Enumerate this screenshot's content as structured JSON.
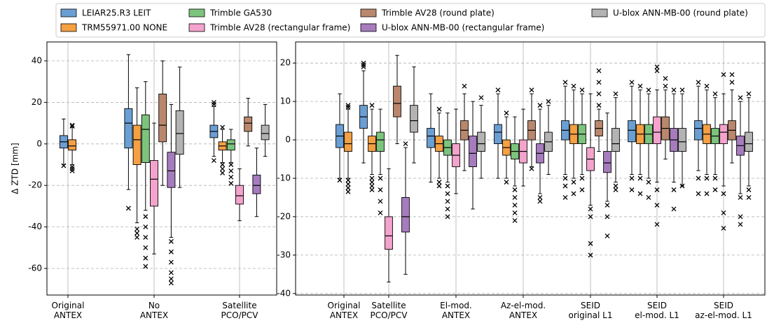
{
  "chart_data": [
    {
      "type": "box",
      "ylabel": "Δ ZTD [mm]",
      "grid": true,
      "categories": [
        "Original\nANTEX",
        "No\nANTEX",
        "Satellite\nPCO/PCV"
      ],
      "ylim": [
        -72.8,
        49.1
      ],
      "yticks": [
        -60,
        -40,
        -20,
        0,
        20,
        40
      ],
      "series": [
        {
          "name": "LEIAR25.R3 LEIT",
          "color": "#6a9fd4",
          "values": [
            {
              "whislo": -10,
              "q1": -2,
              "med": 1,
              "q3": 4,
              "whishi": 12,
              "fliers": [
                -10.5
              ]
            },
            {
              "whislo": -22,
              "q1": -2,
              "med": 10,
              "q3": 17,
              "whishi": 43,
              "fliers": [
                -31
              ]
            },
            {
              "whislo": -6,
              "q1": 3,
              "med": 6,
              "q3": 9,
              "whishi": 18,
              "fliers": [
                19,
                20,
                -8
              ]
            }
          ]
        },
        {
          "name": "TRM55971.00 NONE",
          "color": "#f5a043",
          "values": [
            {
              "whislo": -10,
              "q1": -3,
              "med": -1,
              "q3": 2,
              "whishi": 8,
              "fliers": [
                9,
                8.5,
                -11,
                -12,
                -13
              ]
            },
            {
              "whislo": -38,
              "q1": -10,
              "med": 2,
              "q3": 9,
              "whishi": 27,
              "fliers": [
                -41,
                -43,
                -45
              ]
            },
            {
              "whislo": -9,
              "q1": -3,
              "med": -1,
              "q3": 1,
              "whishi": 7,
              "fliers": [
                8,
                -10,
                -12,
                -14
              ]
            }
          ]
        },
        {
          "name": "Trimble GA530",
          "color": "#7cc47c",
          "values": [
            null,
            {
              "whislo": -32,
              "q1": -9,
              "med": 7,
              "q3": 14,
              "whishi": 30,
              "fliers": [
                -35,
                -40,
                -45,
                -50,
                -55,
                -59
              ]
            },
            {
              "whislo": -9,
              "q1": -3,
              "med": 0,
              "q3": 2,
              "whishi": 7,
              "fliers": [
                -10,
                -13,
                -16,
                -19
              ]
            }
          ]
        },
        {
          "name": "Trimble AV28 (rectangular frame)",
          "color": "#f4a3cc",
          "values": [
            null,
            {
              "whislo": -53,
              "q1": -30,
              "med": -17,
              "q3": -8,
              "whishi": 10,
              "fliers": []
            },
            {
              "whislo": -37,
              "q1": -29,
              "med": -25,
              "q3": -20,
              "whishi": -12,
              "fliers": []
            }
          ]
        },
        {
          "name": "Trimble AV28 (round plate)",
          "color": "#b9886c",
          "values": [
            null,
            {
              "whislo": -20,
              "q1": 1,
              "med": 9,
              "q3": 24,
              "whishi": 40,
              "fliers": []
            },
            {
              "whislo": -1,
              "q1": 6,
              "med": 10,
              "q3": 13,
              "whishi": 22,
              "fliers": []
            }
          ]
        },
        {
          "name": "U-blox ANN-MB-00 (rectangular frame)",
          "color": "#a77cbf",
          "values": [
            null,
            {
              "whislo": -45,
              "q1": -21,
              "med": -13,
              "q3": -4,
              "whishi": 19,
              "fliers": [
                -47,
                -52,
                -57,
                -62,
                -65,
                -67
              ]
            },
            {
              "whislo": -35,
              "q1": -24,
              "med": -20,
              "q3": -15,
              "whishi": -2,
              "fliers": []
            }
          ]
        },
        {
          "name": "U-blox ANN-MB-00 (round plate)",
          "color": "#b3b3b3",
          "values": [
            null,
            {
              "whislo": -21,
              "q1": -5,
              "med": 5,
              "q3": 16,
              "whishi": 37,
              "fliers": []
            },
            {
              "whislo": -6,
              "q1": 2,
              "med": 5,
              "q3": 9,
              "whishi": 19,
              "fliers": []
            }
          ]
        }
      ]
    },
    {
      "type": "box",
      "grid": true,
      "categories": [
        "Original\nANTEX",
        "Satellite\nPCO/PCV",
        "El-mod.\nANTEX",
        "Az-el-mod.\nANTEX",
        "SEID\noriginal L1",
        "SEID\nel-mod. L1",
        "SEID\naz-el-mod. L1"
      ],
      "ylim": [
        -40.4,
        25.5
      ],
      "yticks": [
        -40,
        -30,
        -20,
        -10,
        0,
        10,
        20
      ],
      "series": [
        {
          "values": [
            {
              "whislo": -10,
              "q1": -2,
              "med": 1,
              "q3": 4,
              "whishi": 12,
              "fliers": [
                -10.5
              ]
            },
            {
              "whislo": -6,
              "q1": 3,
              "med": 6,
              "q3": 9,
              "whishi": 18,
              "fliers": [
                19,
                19.5,
                20
              ]
            },
            {
              "whislo": -11,
              "q1": -2,
              "med": 1,
              "q3": 3,
              "whishi": 12,
              "fliers": []
            },
            {
              "whislo": -10,
              "q1": -1,
              "med": 2,
              "q3": 4,
              "whishi": 12,
              "fliers": [
                13
              ]
            },
            {
              "whislo": -9,
              "q1": 0,
              "med": 2.5,
              "q3": 5,
              "whishi": 14,
              "fliers": [
                15,
                -10,
                -12,
                -15
              ]
            },
            {
              "whislo": -9,
              "q1": -0.5,
              "med": 2.5,
              "q3": 5,
              "whishi": 14,
              "fliers": [
                15,
                -10,
                -13
              ]
            },
            {
              "whislo": -8,
              "q1": 0,
              "med": 3,
              "q3": 5,
              "whishi": 14,
              "fliers": [
                15,
                -10,
                -14
              ]
            }
          ]
        },
        {
          "values": [
            {
              "whislo": -10,
              "q1": -3,
              "med": -1,
              "q3": 2,
              "whishi": 8,
              "fliers": [
                9,
                8.5,
                -10.5,
                -11.5,
                -12.5,
                -13.5
              ]
            },
            {
              "whislo": -9,
              "q1": -3,
              "med": -1,
              "q3": 1,
              "whishi": 8,
              "fliers": [
                9,
                -10,
                -11,
                -12,
                -13
              ]
            },
            {
              "whislo": -10,
              "q1": -3,
              "med": -1,
              "q3": 1,
              "whishi": 7,
              "fliers": [
                8,
                -11,
                -12
              ]
            },
            {
              "whislo": -10,
              "q1": -4,
              "med": -2,
              "q3": 0,
              "whishi": 6,
              "fliers": [
                7,
                -11
              ]
            },
            {
              "whislo": -10,
              "q1": -1,
              "med": 1.5,
              "q3": 4,
              "whishi": 13,
              "fliers": [
                14,
                -11,
                -14
              ]
            },
            {
              "whislo": -9,
              "q1": -1,
              "med": 1.5,
              "q3": 4,
              "whishi": 13,
              "fliers": [
                14,
                -10,
                -14
              ]
            },
            {
              "whislo": -9,
              "q1": -1,
              "med": 1.5,
              "q3": 4,
              "whishi": 13,
              "fliers": [
                14,
                -10,
                -14
              ]
            }
          ]
        },
        {
          "values": [
            null,
            {
              "whislo": -9,
              "q1": -3,
              "med": 0,
              "q3": 2,
              "whishi": 8,
              "fliers": [
                -10,
                -13,
                -16,
                -19
              ]
            },
            {
              "whislo": -11,
              "q1": -4,
              "med": -2,
              "q3": 0,
              "whishi": 7,
              "fliers": [
                -12,
                -14,
                -16,
                -18,
                -20
              ]
            },
            {
              "whislo": -12,
              "q1": -5,
              "med": -3,
              "q3": -1,
              "whishi": 6,
              "fliers": [
                -13,
                -15,
                -17,
                -19,
                -21
              ]
            },
            {
              "whislo": -9,
              "q1": -1,
              "med": 1.5,
              "q3": 4,
              "whishi": 12,
              "fliers": [
                13,
                -10,
                -13
              ]
            },
            {
              "whislo": -10,
              "q1": -1,
              "med": 1.5,
              "q3": 4,
              "whishi": 12,
              "fliers": [
                13,
                -11,
                -15
              ]
            },
            {
              "whislo": -9,
              "q1": -1,
              "med": 1,
              "q3": 3,
              "whishi": 11,
              "fliers": [
                12,
                -10,
                -13
              ]
            }
          ]
        },
        {
          "values": [
            null,
            {
              "whislo": -37,
              "q1": -28.5,
              "med": -25,
              "q3": -20,
              "whishi": -7.5,
              "fliers": []
            },
            {
              "whislo": -14,
              "q1": -7,
              "med": -4,
              "q3": -1,
              "whishi": 8,
              "fliers": []
            },
            {
              "whislo": -12,
              "q1": -6,
              "med": -3,
              "q3": 0,
              "whishi": 8,
              "fliers": []
            },
            {
              "whislo": -17,
              "q1": -8,
              "med": -5,
              "q3": -2,
              "whishi": 12,
              "fliers": [
                -18,
                -20,
                -27,
                -30
              ]
            },
            {
              "whislo": -11,
              "q1": -1,
              "med": 2,
              "q3": 6,
              "whishi": 13,
              "fliers": [
                19,
                18,
                -13,
                -17,
                -22
              ]
            },
            {
              "whislo": -12,
              "q1": -1,
              "med": 2,
              "q3": 4,
              "whishi": 12,
              "fliers": [
                17,
                -14,
                -19,
                -23
              ]
            }
          ]
        },
        {
          "values": [
            null,
            {
              "whislo": -1,
              "q1": 6,
              "med": 9.5,
              "q3": 14,
              "whishi": 22,
              "fliers": []
            },
            {
              "whislo": -8,
              "q1": 0,
              "med": 2.5,
              "q3": 5,
              "whishi": 12,
              "fliers": [
                14
              ]
            },
            {
              "whislo": -7,
              "q1": 0,
              "med": 2.5,
              "q3": 5,
              "whishi": 12,
              "fliers": [
                13,
                -7.5
              ]
            },
            {
              "whislo": -3,
              "q1": 1,
              "med": 3,
              "q3": 5,
              "whishi": 8,
              "fliers": [
                9,
                12,
                15,
                18
              ]
            },
            {
              "whislo": -5,
              "q1": 0,
              "med": 3,
              "q3": 6,
              "whishi": 13,
              "fliers": [
                14,
                16
              ]
            },
            {
              "whislo": -6,
              "q1": 0,
              "med": 2.5,
              "q3": 5,
              "whishi": 13,
              "fliers": [
                17,
                15
              ]
            }
          ]
        },
        {
          "values": [
            null,
            {
              "whislo": -35,
              "q1": -24,
              "med": -20,
              "q3": -15,
              "whishi": -2,
              "fliers": [
                -1
              ]
            },
            {
              "whislo": -18,
              "q1": -7,
              "med": -3.5,
              "q3": 1,
              "whishi": 10,
              "fliers": []
            },
            {
              "whislo": -14,
              "q1": -6,
              "med": -3.5,
              "q3": -1,
              "whishi": 8,
              "fliers": [
                9,
                -15,
                -16
              ]
            },
            {
              "whislo": -16,
              "q1": -8.5,
              "med": -6,
              "q3": -3,
              "whishi": 7,
              "fliers": [
                -17,
                -20,
                -25
              ]
            },
            {
              "whislo": -11,
              "q1": -3,
              "med": 0,
              "q3": 3,
              "whishi": 12,
              "fliers": [
                13,
                -13,
                -18
              ]
            },
            {
              "whislo": -14,
              "q1": -4,
              "med": -1.5,
              "q3": 1,
              "whishi": 10,
              "fliers": [
                11,
                -15,
                -20,
                -22
              ]
            }
          ]
        },
        {
          "values": [
            null,
            {
              "whislo": -6,
              "q1": 2,
              "med": 5,
              "q3": 9,
              "whishi": 19,
              "fliers": []
            },
            {
              "whislo": -10,
              "q1": -3,
              "med": -1,
              "q3": 2,
              "whishi": 9,
              "fliers": [
                11
              ]
            },
            {
              "whislo": -9,
              "q1": -3,
              "med": -0.5,
              "q3": 2,
              "whishi": 9,
              "fliers": [
                10
              ]
            },
            {
              "whislo": -11,
              "q1": -3,
              "med": -1,
              "q3": 3,
              "whishi": 11,
              "fliers": [
                12,
                -12,
                -13
              ]
            },
            {
              "whislo": -12,
              "q1": -3,
              "med": -0.5,
              "q3": 3,
              "whishi": 12,
              "fliers": [
                13,
                -12
              ]
            },
            {
              "whislo": -12,
              "q1": -3,
              "med": -1,
              "q3": 2,
              "whishi": 11,
              "fliers": [
                12,
                -13,
                -15
              ]
            }
          ]
        }
      ]
    }
  ]
}
